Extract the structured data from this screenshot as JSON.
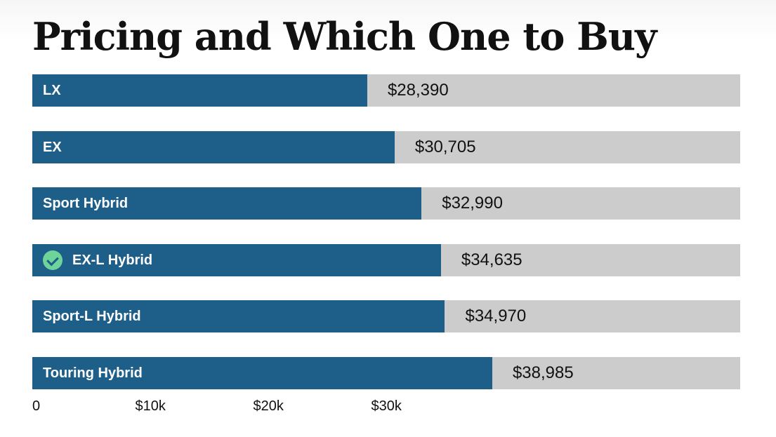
{
  "chart_data": {
    "type": "bar",
    "orientation": "horizontal",
    "title": "Pricing and Which One to Buy",
    "xlabel": "",
    "ylabel": "",
    "categories": [
      "LX",
      "EX",
      "Sport Hybrid",
      "EX-L Hybrid",
      "Sport-L Hybrid",
      "Touring Hybrid"
    ],
    "values": [
      28390,
      30705,
      32990,
      34635,
      34970,
      38985
    ],
    "value_labels": [
      "$28,390",
      "$30,705",
      "$32,990",
      "$34,635",
      "$34,970",
      "$38,985"
    ],
    "highlighted": [
      "EX-L Hybrid"
    ],
    "xlim": [
      0,
      60000
    ],
    "x_ticks": [
      0,
      10000,
      20000,
      30000
    ],
    "x_tick_labels": [
      "0",
      "$10k",
      "$20k",
      "$30k"
    ],
    "grid": false,
    "colors": {
      "bar": "#1e5f8a",
      "track": "#cccccc",
      "highlight_icon": "#6fd49a"
    }
  },
  "icons": {
    "highlight": "check-circle-icon"
  }
}
